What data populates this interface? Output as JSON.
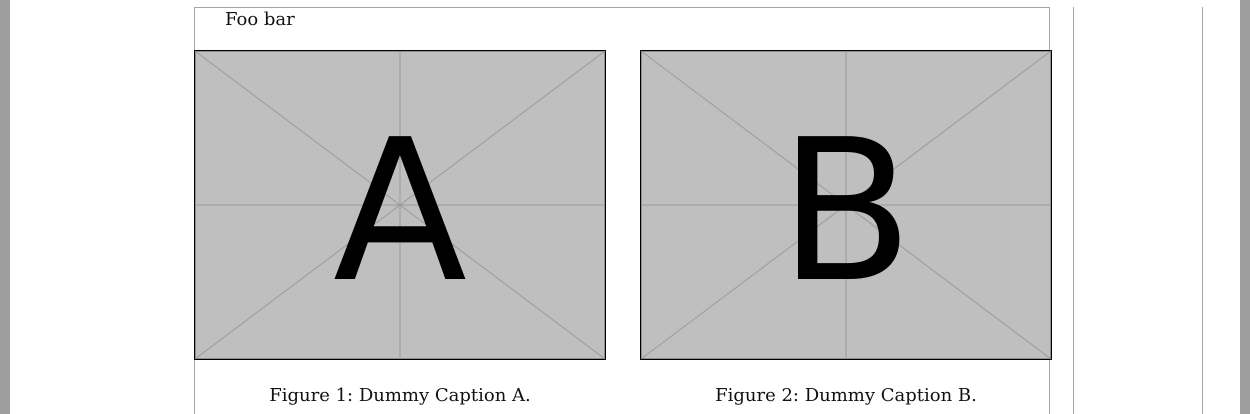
{
  "document": {
    "text": "Foo bar",
    "figures": [
      {
        "placeholder_letter": "A",
        "caption": "Figure 1: Dummy Caption A."
      },
      {
        "placeholder_letter": "B",
        "caption": "Figure 2: Dummy Caption B."
      }
    ]
  },
  "colors": {
    "placeholder_fill": "#bfbfbf",
    "placeholder_lines": "#9a9a9a",
    "frame_border": "#000000"
  }
}
